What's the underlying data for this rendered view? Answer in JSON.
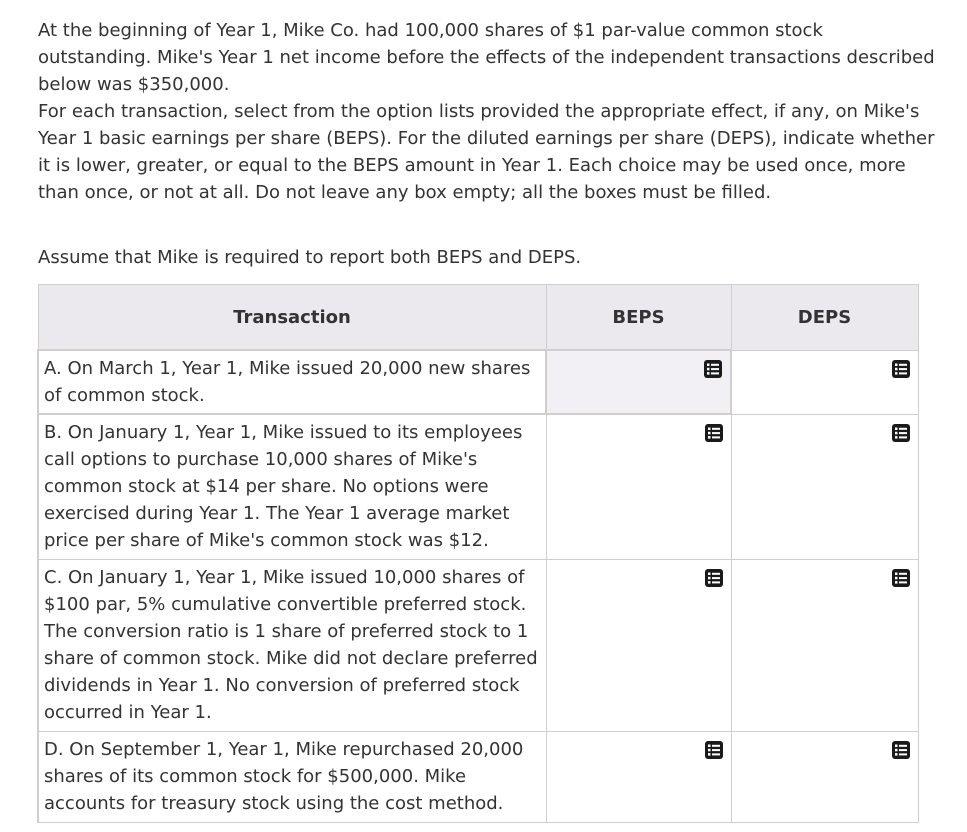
{
  "intro": {
    "paragraph1": "At the beginning of Year 1, Mike Co. had 100,000 shares of $1 par-value common stock outstanding. Mike's Year 1 net income before the effects of the independent transactions described below was $350,000.",
    "paragraph2": "For each transaction, select from the option lists provided the appropriate effect, if any, on Mike's Year 1 basic earnings per share (BEPS). For the diluted earnings per share (DEPS), indicate whether it is lower, greater, or equal to the BEPS amount in Year 1. Each choice may be used once, more than once, or not at all. Do not leave any box empty; all the boxes must be filled.",
    "assume": "Assume that Mike is required to report both BEPS and DEPS."
  },
  "table": {
    "headers": {
      "transaction": "Transaction",
      "beps": "BEPS",
      "deps": "DEPS"
    },
    "rows": [
      {
        "text": "A. On March 1, Year 1, Mike issued 20,000 new shares of common stock."
      },
      {
        "text": "B. On January 1, Year 1, Mike issued to its employees call options to purchase 10,000 shares of Mike's common stock at $14 per share. No options were exercised during Year 1. The Year 1 average market price per share of Mike's common stock was $12."
      },
      {
        "text": "C. On January 1, Year 1, Mike issued 10,000 shares of $100 par, 5% cumulative convertible preferred stock. The conversion ratio is 1 share of preferred stock to 1 share of common stock. Mike did not declare preferred dividends in Year 1. No conversion of preferred stock occurred in Year 1."
      },
      {
        "text": "D. On September 1, Year 1, Mike repurchased 20,000 shares of its common stock for $500,000. Mike accounts for treasury stock using the cost method."
      }
    ]
  },
  "icons": {
    "option_list": "option-list-icon"
  },
  "colors": {
    "header_bg": "#ebe9ee",
    "active_cell_bg": "#f2f0f4",
    "border": "#cfcfcf",
    "icon": "#1a1a1a"
  }
}
